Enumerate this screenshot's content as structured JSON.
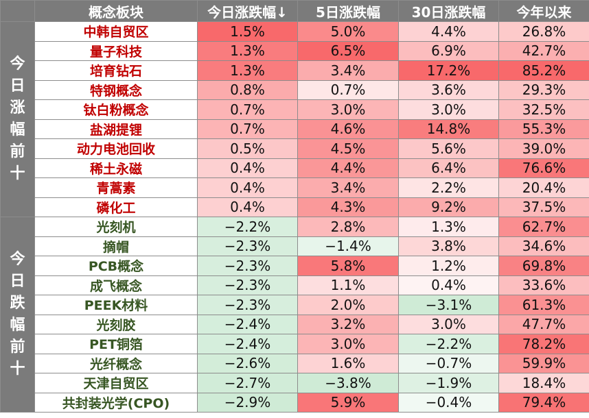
{
  "header": {
    "concept": "概念板块",
    "today": "今日涨跌幅↓",
    "d5": "5日涨跌幅",
    "d30": "30日涨跌幅",
    "ytd": "今年以来"
  },
  "groups": [
    {
      "label": "今日涨幅前十",
      "kind": "up",
      "rows": [
        {
          "name": "中韩自贸区",
          "today": "1.5%",
          "d5": "5.0%",
          "d30": "4.4%",
          "ytd": "26.8%"
        },
        {
          "name": "量子科技",
          "today": "1.3%",
          "d5": "6.5%",
          "d30": "6.9%",
          "ytd": "42.7%"
        },
        {
          "name": "培育钻石",
          "today": "1.3%",
          "d5": "3.4%",
          "d30": "17.2%",
          "ytd": "85.2%"
        },
        {
          "name": "特钢概念",
          "today": "0.8%",
          "d5": "0.7%",
          "d30": "3.6%",
          "ytd": "29.3%"
        },
        {
          "name": "钛白粉概念",
          "today": "0.7%",
          "d5": "3.0%",
          "d30": "3.0%",
          "ytd": "32.5%"
        },
        {
          "name": "盐湖提锂",
          "today": "0.7%",
          "d5": "4.6%",
          "d30": "14.8%",
          "ytd": "55.3%"
        },
        {
          "name": "动力电池回收",
          "today": "0.5%",
          "d5": "4.5%",
          "d30": "5.6%",
          "ytd": "39.0%"
        },
        {
          "name": "稀土永磁",
          "today": "0.4%",
          "d5": "4.4%",
          "d30": "6.4%",
          "ytd": "76.6%"
        },
        {
          "name": "青蒿素",
          "today": "0.4%",
          "d5": "3.4%",
          "d30": "2.2%",
          "ytd": "20.4%"
        },
        {
          "name": "磷化工",
          "today": "0.4%",
          "d5": "4.3%",
          "d30": "9.2%",
          "ytd": "37.5%"
        }
      ]
    },
    {
      "label": "今日跌幅前十",
      "kind": "down",
      "rows": [
        {
          "name": "光刻机",
          "today": "−2.2%",
          "d5": "2.8%",
          "d30": "1.3%",
          "ytd": "62.7%"
        },
        {
          "name": "摘帽",
          "today": "−2.3%",
          "d5": "−1.4%",
          "d30": "3.8%",
          "ytd": "34.6%"
        },
        {
          "name": "PCB概念",
          "today": "−2.3%",
          "d5": "5.8%",
          "d30": "1.2%",
          "ytd": "69.8%"
        },
        {
          "name": "成飞概念",
          "today": "−2.3%",
          "d5": "1.1%",
          "d30": "0.4%",
          "ytd": "33.6%"
        },
        {
          "name": "PEEK材料",
          "today": "−2.3%",
          "d5": "2.0%",
          "d30": "−3.1%",
          "ytd": "61.3%"
        },
        {
          "name": "光刻胶",
          "today": "−2.4%",
          "d5": "3.2%",
          "d30": "3.0%",
          "ytd": "47.7%"
        },
        {
          "name": "PET铜箔",
          "today": "−2.4%",
          "d5": "3.0%",
          "d30": "−2.2%",
          "ytd": "78.2%"
        },
        {
          "name": "光纤概念",
          "today": "−2.6%",
          "d5": "1.6%",
          "d30": "−0.7%",
          "ytd": "59.9%"
        },
        {
          "name": "天津自贸区",
          "today": "−2.7%",
          "d5": "−3.8%",
          "d30": "−1.9%",
          "ytd": "18.4%"
        },
        {
          "name": "共封装光学(CPO)",
          "today": "−2.9%",
          "d5": "5.9%",
          "d30": "−0.4%",
          "ytd": "79.4%"
        }
      ]
    }
  ],
  "colors": {
    "header_bg": "#7b7b7b",
    "up_text": "#c00000",
    "down_text": "#375623",
    "positive_scale": "#f8696b",
    "negative_scale": "#63be7b"
  }
}
